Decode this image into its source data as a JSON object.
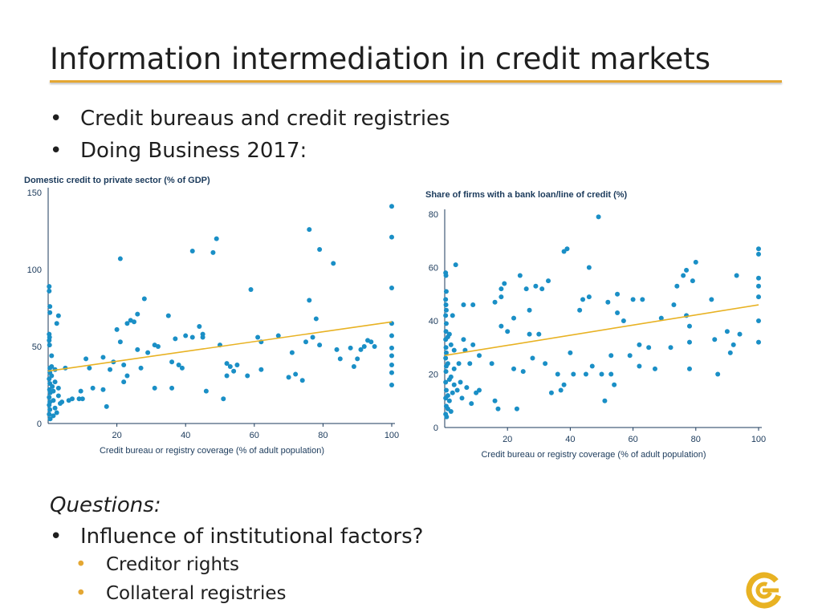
{
  "slide": {
    "title": "Information intermediation in credit markets",
    "bullets": [
      "Credit bureaus and credit registries",
      "Doing Business 2017:"
    ],
    "questions_heading": "Questions:",
    "question_bullets": [
      "Influence of institutional factors?"
    ],
    "sub_bullets": [
      "Creditor rights",
      "Collateral registries"
    ],
    "bullet_symbol": "•",
    "logo_icon": "circular-c-logo-icon"
  },
  "colors": {
    "accent": "#e4a733",
    "points": "#1a8fc6",
    "trendline": "#e8b223",
    "axis_text": "#1b3a5b"
  },
  "chart_data": [
    {
      "type": "scatter",
      "title": "Domestic credit to private sector (% of GDP)",
      "xlabel": "Credit bureau or registry coverage (% of adult population)",
      "ylabel": "Domestic credit to private sector (% of GDP)",
      "xlim": [
        0,
        100
      ],
      "ylim": [
        0,
        150
      ],
      "xticks": [
        20,
        40,
        60,
        80,
        100
      ],
      "yticks": [
        0,
        50,
        100,
        150
      ],
      "grid": false,
      "trendline": {
        "x": [
          0,
          100
        ],
        "y": [
          34,
          66
        ]
      },
      "points": [
        [
          0.3,
          89
        ],
        [
          0.3,
          86
        ],
        [
          0.5,
          76
        ],
        [
          0.5,
          72
        ],
        [
          0.3,
          58
        ],
        [
          0.4,
          56
        ],
        [
          0.3,
          54
        ],
        [
          0.4,
          51
        ],
        [
          0.5,
          36
        ],
        [
          0.5,
          33
        ],
        [
          0.3,
          29
        ],
        [
          0.5,
          26
        ],
        [
          0.4,
          22
        ],
        [
          0.6,
          20
        ],
        [
          0.3,
          17
        ],
        [
          0.5,
          14
        ],
        [
          0.3,
          12
        ],
        [
          0.5,
          9
        ],
        [
          0.3,
          6
        ],
        [
          0.6,
          3
        ],
        [
          1,
          44
        ],
        [
          1,
          37
        ],
        [
          1,
          31
        ],
        [
          1.2,
          24
        ],
        [
          1.5,
          21
        ],
        [
          1.5,
          15
        ],
        [
          1.5,
          5
        ],
        [
          2,
          35
        ],
        [
          2,
          27
        ],
        [
          2,
          10
        ],
        [
          2.5,
          65
        ],
        [
          2.5,
          7
        ],
        [
          3,
          70
        ],
        [
          3,
          23
        ],
        [
          3,
          18
        ],
        [
          3.5,
          13
        ],
        [
          4,
          14
        ],
        [
          5,
          36
        ],
        [
          6,
          15
        ],
        [
          7,
          16
        ],
        [
          9,
          16
        ],
        [
          9.5,
          21
        ],
        [
          10,
          16
        ],
        [
          11,
          42
        ],
        [
          12,
          36
        ],
        [
          13,
          23
        ],
        [
          16,
          43
        ],
        [
          16,
          22
        ],
        [
          17,
          11
        ],
        [
          18,
          35
        ],
        [
          19,
          40
        ],
        [
          20,
          61
        ],
        [
          21,
          53
        ],
        [
          21,
          107
        ],
        [
          22,
          38
        ],
        [
          22,
          27
        ],
        [
          23,
          31
        ],
        [
          23,
          65
        ],
        [
          24,
          67
        ],
        [
          25,
          66
        ],
        [
          26,
          71
        ],
        [
          26,
          48
        ],
        [
          27,
          36
        ],
        [
          28,
          81
        ],
        [
          29,
          46
        ],
        [
          31,
          51
        ],
        [
          31,
          23
        ],
        [
          32,
          50
        ],
        [
          35,
          70
        ],
        [
          36,
          40
        ],
        [
          36,
          23
        ],
        [
          37,
          55
        ],
        [
          38,
          38
        ],
        [
          39,
          36
        ],
        [
          40,
          57
        ],
        [
          42,
          112
        ],
        [
          42,
          56
        ],
        [
          44,
          63
        ],
        [
          45,
          58
        ],
        [
          45,
          56
        ],
        [
          46,
          21
        ],
        [
          48,
          111
        ],
        [
          49,
          120
        ],
        [
          50,
          51
        ],
        [
          51,
          16
        ],
        [
          52,
          31
        ],
        [
          52,
          39
        ],
        [
          53,
          37
        ],
        [
          54,
          34
        ],
        [
          55,
          38
        ],
        [
          58,
          31
        ],
        [
          59,
          87
        ],
        [
          61,
          56
        ],
        [
          62,
          53
        ],
        [
          62,
          35
        ],
        [
          67,
          57
        ],
        [
          70,
          30
        ],
        [
          71,
          46
        ],
        [
          72,
          32
        ],
        [
          74,
          28
        ],
        [
          75,
          53
        ],
        [
          76,
          126
        ],
        [
          76,
          80
        ],
        [
          77,
          56
        ],
        [
          78,
          68
        ],
        [
          79,
          113
        ],
        [
          79,
          51
        ],
        [
          83,
          104
        ],
        [
          84,
          48
        ],
        [
          85,
          42
        ],
        [
          88,
          49
        ],
        [
          89,
          37
        ],
        [
          90,
          42
        ],
        [
          91,
          48
        ],
        [
          92,
          50
        ],
        [
          93,
          54
        ],
        [
          94,
          53
        ],
        [
          95,
          50
        ],
        [
          100,
          141
        ],
        [
          100,
          121
        ],
        [
          100,
          88
        ],
        [
          100,
          65
        ],
        [
          100,
          57
        ],
        [
          100,
          49
        ],
        [
          100,
          44
        ],
        [
          100,
          38
        ],
        [
          100,
          33
        ],
        [
          100,
          25
        ]
      ]
    },
    {
      "type": "scatter",
      "title": "Share of firms with a bank loan/line of credit (%)",
      "xlabel": "Credit bureau or registry coverage (% of adult population)",
      "ylabel": "Share of firms with a bank loan/line of credit (%)",
      "xlim": [
        0,
        100
      ],
      "ylim": [
        0,
        80
      ],
      "xticks": [
        20,
        40,
        60,
        80,
        100
      ],
      "yticks": [
        0,
        20,
        40,
        60,
        80
      ],
      "grid": false,
      "trendline": {
        "x": [
          0,
          100
        ],
        "y": [
          27,
          46
        ]
      },
      "points": [
        [
          0.3,
          58
        ],
        [
          0.4,
          57
        ],
        [
          0.5,
          51
        ],
        [
          0.3,
          48
        ],
        [
          0.4,
          46
        ],
        [
          0.5,
          44
        ],
        [
          0.3,
          42
        ],
        [
          0.5,
          39
        ],
        [
          0.4,
          36
        ],
        [
          0.3,
          33
        ],
        [
          0.4,
          30
        ],
        [
          0.5,
          28
        ],
        [
          0.3,
          26
        ],
        [
          0.5,
          23
        ],
        [
          0.4,
          21
        ],
        [
          0.3,
          17
        ],
        [
          0.5,
          14
        ],
        [
          0.3,
          11
        ],
        [
          0.5,
          8
        ],
        [
          0.3,
          5
        ],
        [
          0.6,
          4
        ],
        [
          1,
          34
        ],
        [
          1,
          24
        ],
        [
          1,
          12
        ],
        [
          1,
          7
        ],
        [
          1.5,
          35
        ],
        [
          1.5,
          18
        ],
        [
          1.5,
          10
        ],
        [
          2,
          31
        ],
        [
          2,
          19
        ],
        [
          2,
          6
        ],
        [
          2.5,
          42
        ],
        [
          2.5,
          13
        ],
        [
          3,
          29
        ],
        [
          3,
          22
        ],
        [
          3,
          16
        ],
        [
          3.5,
          61
        ],
        [
          4,
          14
        ],
        [
          4.5,
          24
        ],
        [
          5,
          17
        ],
        [
          5.5,
          11
        ],
        [
          6,
          46
        ],
        [
          6,
          33
        ],
        [
          6.5,
          29
        ],
        [
          7,
          15
        ],
        [
          8,
          24
        ],
        [
          8.5,
          9
        ],
        [
          9,
          46
        ],
        [
          9,
          31
        ],
        [
          10,
          13
        ],
        [
          11,
          27
        ],
        [
          11,
          14
        ],
        [
          15,
          24
        ],
        [
          16,
          47
        ],
        [
          16,
          10
        ],
        [
          17,
          7
        ],
        [
          18,
          52
        ],
        [
          18,
          49
        ],
        [
          18,
          38
        ],
        [
          19,
          54
        ],
        [
          20,
          36
        ],
        [
          22,
          41
        ],
        [
          22,
          22
        ],
        [
          23,
          7
        ],
        [
          24,
          57
        ],
        [
          25,
          21
        ],
        [
          26,
          52
        ],
        [
          27,
          44
        ],
        [
          27,
          35
        ],
        [
          28,
          26
        ],
        [
          29,
          53
        ],
        [
          30,
          35
        ],
        [
          31,
          52
        ],
        [
          32,
          24
        ],
        [
          33,
          55
        ],
        [
          34,
          13
        ],
        [
          36,
          20
        ],
        [
          37,
          14
        ],
        [
          38,
          16
        ],
        [
          38,
          66
        ],
        [
          39,
          67
        ],
        [
          40,
          28
        ],
        [
          41,
          20
        ],
        [
          43,
          44
        ],
        [
          44,
          48
        ],
        [
          45,
          20
        ],
        [
          46,
          49
        ],
        [
          46,
          60
        ],
        [
          47,
          23
        ],
        [
          49,
          79
        ],
        [
          50,
          20
        ],
        [
          51,
          10
        ],
        [
          52,
          47
        ],
        [
          53,
          27
        ],
        [
          53,
          20
        ],
        [
          54,
          16
        ],
        [
          55,
          43
        ],
        [
          55,
          50
        ],
        [
          57,
          40
        ],
        [
          59,
          27
        ],
        [
          60,
          48
        ],
        [
          62,
          31
        ],
        [
          62,
          23
        ],
        [
          63,
          48
        ],
        [
          65,
          30
        ],
        [
          67,
          22
        ],
        [
          69,
          41
        ],
        [
          72,
          30
        ],
        [
          73,
          46
        ],
        [
          74,
          53
        ],
        [
          76,
          57
        ],
        [
          77,
          59
        ],
        [
          77,
          42
        ],
        [
          78,
          38
        ],
        [
          78,
          32
        ],
        [
          78,
          22
        ],
        [
          79,
          55
        ],
        [
          80,
          62
        ],
        [
          85,
          48
        ],
        [
          86,
          33
        ],
        [
          87,
          20
        ],
        [
          90,
          36
        ],
        [
          91,
          28
        ],
        [
          92,
          31
        ],
        [
          93,
          57
        ],
        [
          94,
          35
        ],
        [
          100,
          67
        ],
        [
          100,
          65
        ],
        [
          100,
          56
        ],
        [
          100,
          53
        ],
        [
          100,
          49
        ],
        [
          100,
          40
        ],
        [
          100,
          32
        ]
      ]
    }
  ]
}
